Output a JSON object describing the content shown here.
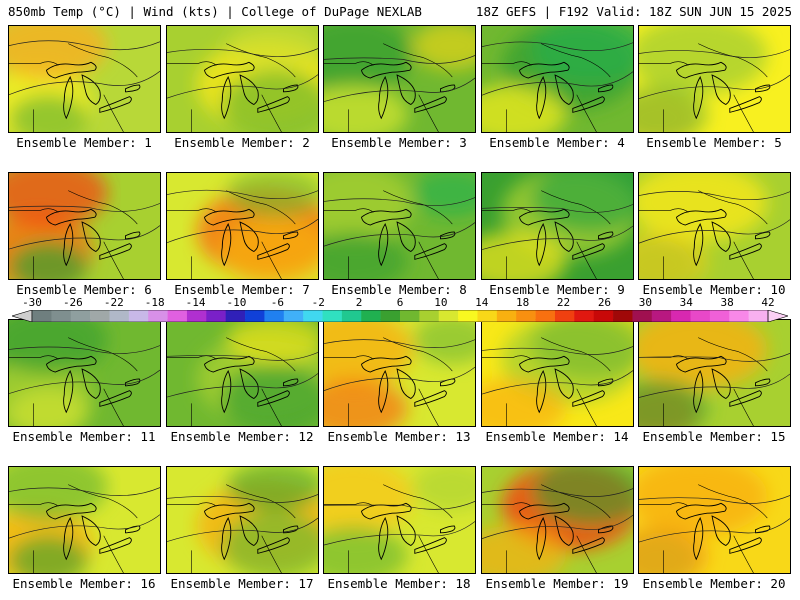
{
  "header": {
    "left": "850mb Temp (°C) | Wind (kts) | College of DuPage NEXLAB",
    "right": "18Z GEFS | F192 Valid: 18Z SUN JUN 15 2025"
  },
  "colorbar": {
    "labels": [
      "-30",
      "-26",
      "-22",
      "-18",
      "-14",
      "-10",
      "-6",
      "-2",
      "2",
      "6",
      "10",
      "14",
      "18",
      "22",
      "26",
      "30",
      "34",
      "38",
      "42"
    ],
    "colors": [
      "#6f7f7f",
      "#7f8f8f",
      "#8f9f9f",
      "#a0a8a8",
      "#b0b8c8",
      "#c8b8e8",
      "#d890e8",
      "#e060e0",
      "#b030d0",
      "#7a20c8",
      "#3020b8",
      "#1040d8",
      "#2080f0",
      "#40b0f8",
      "#40d8f0",
      "#30e0c0",
      "#20c890",
      "#20b050",
      "#3aa030",
      "#70b830",
      "#a8d030",
      "#d8e830",
      "#f8f820",
      "#f8d818",
      "#f8b010",
      "#f89010",
      "#f87010",
      "#f04010",
      "#e01810",
      "#c80808",
      "#a00808",
      "#a01050",
      "#b81880",
      "#d828b0",
      "#e848c8",
      "#f060d8",
      "#f888e8",
      "#f8b0f0"
    ]
  },
  "members": [
    {
      "label": "Ensemble Member: 1",
      "base": "#b8d838",
      "blobs": [
        {
          "c": "#f8f020",
          "a": 0.8
        },
        {
          "c": "#f8b020",
          "a": 0.8
        },
        {
          "c": "#70b830",
          "a": 0.7
        }
      ]
    },
    {
      "label": "Ensemble Member: 2",
      "base": "#a8d030",
      "blobs": [
        {
          "c": "#f8e818",
          "a": 0.8
        },
        {
          "c": "#70b830",
          "a": 0.7
        },
        {
          "c": "#d0e030",
          "a": 0.6
        }
      ]
    },
    {
      "label": "Ensemble Member: 3",
      "base": "#70b830",
      "blobs": [
        {
          "c": "#3aa030",
          "a": 0.8
        },
        {
          "c": "#d8e830",
          "a": 0.7
        },
        {
          "c": "#f8d818",
          "a": 0.6
        }
      ]
    },
    {
      "label": "Ensemble Member: 4",
      "base": "#70b830",
      "blobs": [
        {
          "c": "#3aa030",
          "a": 0.8
        },
        {
          "c": "#f8f020",
          "a": 0.7
        },
        {
          "c": "#20b050",
          "a": 0.6
        }
      ]
    },
    {
      "label": "Ensemble Member: 5",
      "base": "#f8f020",
      "blobs": [
        {
          "c": "#a8d030",
          "a": 0.8
        },
        {
          "c": "#f8c818",
          "a": 0.7
        },
        {
          "c": "#70b830",
          "a": 0.6
        }
      ]
    },
    {
      "label": "Ensemble Member: 6",
      "base": "#a8d030",
      "blobs": [
        {
          "c": "#f87010",
          "a": 0.8
        },
        {
          "c": "#f84010",
          "a": 0.7
        },
        {
          "c": "#3aa030",
          "a": 0.7
        }
      ]
    },
    {
      "label": "Ensemble Member: 7",
      "base": "#d8e830",
      "blobs": [
        {
          "c": "#f87010",
          "a": 0.8
        },
        {
          "c": "#f8b010",
          "a": 0.7
        },
        {
          "c": "#70b830",
          "a": 0.6
        }
      ]
    },
    {
      "label": "Ensemble Member: 8",
      "base": "#70b830",
      "blobs": [
        {
          "c": "#a8d030",
          "a": 0.8
        },
        {
          "c": "#3aa030",
          "a": 0.7
        },
        {
          "c": "#20b050",
          "a": 0.6
        }
      ]
    },
    {
      "label": "Ensemble Member: 9",
      "base": "#3aa030",
      "blobs": [
        {
          "c": "#a8d030",
          "a": 0.8
        },
        {
          "c": "#f8e818",
          "a": 0.7
        },
        {
          "c": "#20a040",
          "a": 0.6
        }
      ]
    },
    {
      "label": "Ensemble Member: 10",
      "base": "#a8d030",
      "blobs": [
        {
          "c": "#f8e818",
          "a": 0.8
        },
        {
          "c": "#70b830",
          "a": 0.7
        },
        {
          "c": "#f8d018",
          "a": 0.6
        }
      ]
    },
    {
      "label": "Ensemble Member: 11",
      "base": "#70b830",
      "blobs": [
        {
          "c": "#a8d030",
          "a": 0.8
        },
        {
          "c": "#3aa030",
          "a": 0.7
        },
        {
          "c": "#d8e830",
          "a": 0.6
        }
      ]
    },
    {
      "label": "Ensemble Member: 12",
      "base": "#70b830",
      "blobs": [
        {
          "c": "#a8d030",
          "a": 0.8
        },
        {
          "c": "#3aa030",
          "a": 0.7
        },
        {
          "c": "#f8e818",
          "a": 0.6
        }
      ]
    },
    {
      "label": "Ensemble Member: 13",
      "base": "#d8e830",
      "blobs": [
        {
          "c": "#f8b010",
          "a": 0.8
        },
        {
          "c": "#f87010",
          "a": 0.7
        },
        {
          "c": "#70b830",
          "a": 0.6
        }
      ]
    },
    {
      "label": "Ensemble Member: 14",
      "base": "#f8e818",
      "blobs": [
        {
          "c": "#a8d030",
          "a": 0.8
        },
        {
          "c": "#f8b010",
          "a": 0.7
        },
        {
          "c": "#70b830",
          "a": 0.6
        }
      ]
    },
    {
      "label": "Ensemble Member: 15",
      "base": "#a8d030",
      "blobs": [
        {
          "c": "#f8b010",
          "a": 0.8
        },
        {
          "c": "#f87010",
          "a": 0.7
        },
        {
          "c": "#3aa030",
          "a": 0.6
        }
      ]
    },
    {
      "label": "Ensemble Member: 16",
      "base": "#d8e830",
      "blobs": [
        {
          "c": "#f8b010",
          "a": 0.8
        },
        {
          "c": "#70b830",
          "a": 0.7
        },
        {
          "c": "#3aa030",
          "a": 0.6
        }
      ]
    },
    {
      "label": "Ensemble Member: 17",
      "base": "#d8e830",
      "blobs": [
        {
          "c": "#f8b010",
          "a": 0.8
        },
        {
          "c": "#70b830",
          "a": 0.7
        },
        {
          "c": "#3aa030",
          "a": 0.6
        }
      ]
    },
    {
      "label": "Ensemble Member: 18",
      "base": "#d8e830",
      "blobs": [
        {
          "c": "#f8c818",
          "a": 0.8
        },
        {
          "c": "#70b830",
          "a": 0.7
        },
        {
          "c": "#a8d030",
          "a": 0.6
        }
      ]
    },
    {
      "label": "Ensemble Member: 19",
      "base": "#a8d030",
      "blobs": [
        {
          "c": "#f84010",
          "a": 0.8
        },
        {
          "c": "#f8b010",
          "a": 0.7
        },
        {
          "c": "#3aa030",
          "a": 0.6
        }
      ]
    },
    {
      "label": "Ensemble Member: 20",
      "base": "#f8d818",
      "blobs": [
        {
          "c": "#f8b010",
          "a": 0.8
        },
        {
          "c": "#a8d030",
          "a": 0.7
        },
        {
          "c": "#f89010",
          "a": 0.6
        }
      ]
    }
  ]
}
